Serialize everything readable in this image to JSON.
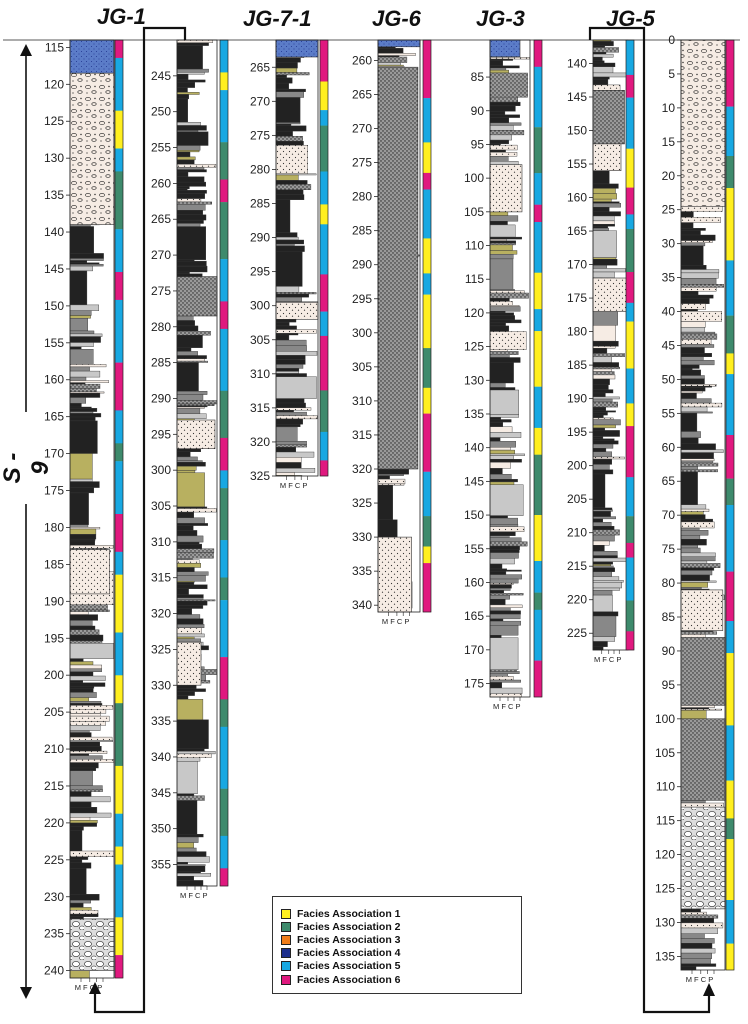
{
  "wells": [
    {
      "id": "jg1",
      "title": "JG-1",
      "ticks": [
        "115",
        "120",
        "125",
        "130",
        "135",
        "140",
        "145",
        "150",
        "155",
        "160",
        "165",
        "170",
        "175",
        "180",
        "185",
        "190",
        "195",
        "200",
        "205",
        "210",
        "215",
        "220",
        "225",
        "230",
        "235",
        "240"
      ],
      "grain_axis": "MFCP",
      "facies": [
        6,
        5,
        1,
        5,
        2,
        5,
        6,
        5,
        6,
        5,
        2,
        5,
        6,
        5,
        1,
        5,
        1,
        2,
        1,
        5,
        1,
        5,
        1,
        6
      ]
    },
    {
      "id": "jg1b",
      "title": "",
      "ticks": [
        "245",
        "250",
        "255",
        "260",
        "265",
        "270",
        "275",
        "280",
        "285",
        "290",
        "295",
        "300",
        "305",
        "310",
        "315",
        "320",
        "325",
        "330",
        "335",
        "340",
        "345",
        "350",
        "355"
      ],
      "grain_axis": "MFCP",
      "facies": [
        5,
        1,
        5,
        2,
        6,
        2,
        5,
        6,
        5,
        2,
        6,
        5,
        2,
        5,
        2,
        5,
        6,
        2,
        5,
        2,
        5,
        6
      ]
    },
    {
      "id": "jg71",
      "title": "JG-7-1",
      "ticks": [
        "265",
        "270",
        "275",
        "280",
        "285",
        "290",
        "295",
        "300",
        "305",
        "310",
        "315",
        "320",
        "325"
      ],
      "grain_axis": "MFCP",
      "facies": [
        6,
        1,
        5,
        2,
        5,
        1,
        5,
        6,
        5,
        6,
        2,
        5,
        6
      ]
    },
    {
      "id": "jg6",
      "title": "JG-6",
      "ticks": [
        "260",
        "265",
        "270",
        "275",
        "280",
        "285",
        "290",
        "295",
        "300",
        "305",
        "310",
        "315",
        "320",
        "325",
        "330",
        "335",
        "340"
      ],
      "grain_axis": "MFCP",
      "facies": [
        6,
        5,
        1,
        6,
        5,
        1,
        5,
        1,
        2,
        1,
        6,
        5,
        2,
        1,
        6
      ]
    },
    {
      "id": "jg3",
      "title": "JG-3",
      "ticks": [
        "85",
        "90",
        "95",
        "100",
        "105",
        "110",
        "115",
        "120",
        "125",
        "130",
        "135",
        "140",
        "145",
        "150",
        "155",
        "160",
        "165",
        "170",
        "175"
      ],
      "grain_axis": "MFCP",
      "facies": [
        6,
        5,
        2,
        5,
        6,
        5,
        1,
        5,
        1,
        5,
        1,
        2,
        1,
        5,
        2,
        5,
        6
      ]
    },
    {
      "id": "jg5",
      "title": "JG-5",
      "ticks": [
        "140",
        "145",
        "150",
        "155",
        "160",
        "165",
        "170",
        "175",
        "180",
        "185",
        "190",
        "195",
        "200",
        "205",
        "210",
        "215",
        "220",
        "225"
      ],
      "grain_axis": "MFCP",
      "facies": [
        5,
        6,
        5,
        1,
        6,
        5,
        2,
        6,
        5,
        1,
        5,
        1,
        6,
        5,
        2,
        6,
        5,
        2,
        6
      ]
    },
    {
      "id": "jg5b",
      "title": "",
      "ticks": [
        "0",
        "5",
        "10",
        "15",
        "20",
        "25",
        "30",
        "35",
        "40",
        "45",
        "50",
        "55",
        "60",
        "65",
        "70",
        "75",
        "80",
        "85",
        "90",
        "95",
        "100",
        "105",
        "110",
        "115",
        "120",
        "125",
        "130",
        "135"
      ],
      "grain_axis": "MFCP",
      "facies": [
        6,
        5,
        2,
        1,
        5,
        2,
        1,
        5,
        6,
        2,
        5,
        6,
        5,
        1,
        5,
        1,
        2,
        1,
        5,
        1
      ]
    }
  ],
  "sequence_label": "S - 9",
  "legend": [
    {
      "label": "Facies Association 1",
      "color": "#ffef1f"
    },
    {
      "label": "Facies Association 2",
      "color": "#3e8a6c"
    },
    {
      "label": "Facies Association 3",
      "color": "#f07d1a"
    },
    {
      "label": "Facies Association 4",
      "color": "#1d2f8c"
    },
    {
      "label": "Facies Association 5",
      "color": "#18a8e2"
    },
    {
      "label": "Facies Association 6",
      "color": "#e0197f"
    }
  ]
}
